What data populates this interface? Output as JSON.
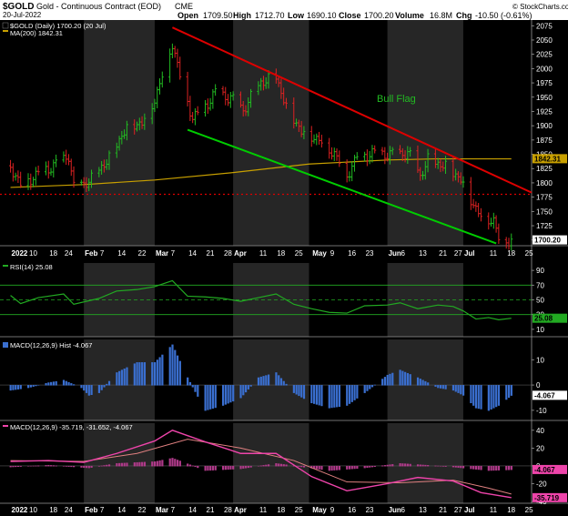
{
  "header": {
    "symbol": "$GOLD",
    "name": "Gold - Continuous Contract (EOD)",
    "exchange": "CME",
    "date": "20-Jul-2022",
    "open_label": "Open",
    "open": "1709.50",
    "high_label": "High",
    "high": "1712.70",
    "low_label": "Low",
    "low": "1690.10",
    "close_label": "Close",
    "close": "1700.20",
    "volume_label": "Volume",
    "volume": "16.8M",
    "chg_label": "Chg",
    "chg": "-10.50 (-0.61%)",
    "watermark": "© StockCharts.com"
  },
  "price_legend": {
    "main": "$GOLD (Daily) 1700.20 (20 Jul)",
    "ma": "MA(200) 1842.31",
    "main_color": "#000000",
    "ma_color": "#c8a000"
  },
  "annotation": {
    "text": "Bull Flag",
    "color": "#22bb22"
  },
  "rsi_legend": "RSI(14) 25.08",
  "macd_hist_legend": "MACD(12,26,9) Hist -4.067",
  "macd_legend": "MACD(12,26,9) -35.719, -31.652, -4.067",
  "colors": {
    "up": "#22bb22",
    "down": "#dd2222",
    "resistance": "#dd0000",
    "support": "#00cc00",
    "ma": "#c8a000",
    "rsi": "#22aa22",
    "hist": "#3a6fd0",
    "macd": "#ee44aa",
    "signal": "#e08080"
  },
  "chart_data": [
    {
      "type": "candlestick",
      "title": "$GOLD (Daily)",
      "x_tick_labels": [
        "2022",
        "10",
        "18",
        "24",
        "Feb",
        "7",
        "14",
        "22",
        "Mar",
        "7",
        "14",
        "21",
        "28",
        "Apr",
        "11",
        "18",
        "25",
        "May",
        "9",
        "16",
        "23",
        "Jun",
        "6",
        "13",
        "21",
        "27",
        "Jul",
        "11",
        "18",
        "25"
      ],
      "y_ticks": [
        1700,
        1725,
        1750,
        1775,
        1800,
        1825,
        1850,
        1875,
        1900,
        1925,
        1950,
        1975,
        2000,
        2025,
        2050,
        2075
      ],
      "ylim": [
        1690,
        2085
      ],
      "last_value_label": "1700.20",
      "ma200_value_label": "1842.31",
      "horizontal_level": 1780,
      "close_path": [
        {
          "d": "2022-01-03",
          "v": 1830
        },
        {
          "d": "2022-01-07",
          "v": 1797
        },
        {
          "d": "2022-01-14",
          "v": 1817
        },
        {
          "d": "2022-01-21",
          "v": 1833
        },
        {
          "d": "2022-01-26",
          "v": 1849
        },
        {
          "d": "2022-01-28",
          "v": 1791
        },
        {
          "d": "2022-02-04",
          "v": 1807
        },
        {
          "d": "2022-02-11",
          "v": 1845
        },
        {
          "d": "2022-02-18",
          "v": 1899
        },
        {
          "d": "2022-02-24",
          "v": 1906
        },
        {
          "d": "2022-03-01",
          "v": 1946
        },
        {
          "d": "2022-03-08",
          "v": 2045
        },
        {
          "d": "2022-03-11",
          "v": 1988
        },
        {
          "d": "2022-03-16",
          "v": 1914
        },
        {
          "d": "2022-03-21",
          "v": 1935
        },
        {
          "d": "2022-03-25",
          "v": 1959
        },
        {
          "d": "2022-03-31",
          "v": 1949
        },
        {
          "d": "2022-04-05",
          "v": 1928
        },
        {
          "d": "2022-04-12",
          "v": 1977
        },
        {
          "d": "2022-04-18",
          "v": 1986
        },
        {
          "d": "2022-04-22",
          "v": 1934
        },
        {
          "d": "2022-04-28",
          "v": 1891
        },
        {
          "d": "2022-05-05",
          "v": 1876
        },
        {
          "d": "2022-05-11",
          "v": 1852
        },
        {
          "d": "2022-05-16",
          "v": 1814
        },
        {
          "d": "2022-05-20",
          "v": 1846
        },
        {
          "d": "2022-05-27",
          "v": 1853
        },
        {
          "d": "2022-06-03",
          "v": 1850
        },
        {
          "d": "2022-06-09",
          "v": 1853
        },
        {
          "d": "2022-06-14",
          "v": 1813
        },
        {
          "d": "2022-06-17",
          "v": 1840
        },
        {
          "d": "2022-06-24",
          "v": 1830
        },
        {
          "d": "2022-06-30",
          "v": 1807
        },
        {
          "d": "2022-07-05",
          "v": 1763
        },
        {
          "d": "2022-07-08",
          "v": 1742
        },
        {
          "d": "2022-07-13",
          "v": 1735
        },
        {
          "d": "2022-07-15",
          "v": 1703
        },
        {
          "d": "2022-07-20",
          "v": 1700
        }
      ],
      "ma200_path": [
        {
          "d": "2022-01-03",
          "v": 1792
        },
        {
          "d": "2022-02-01",
          "v": 1797
        },
        {
          "d": "2022-03-01",
          "v": 1805
        },
        {
          "d": "2022-04-01",
          "v": 1818
        },
        {
          "d": "2022-05-01",
          "v": 1833
        },
        {
          "d": "2022-06-01",
          "v": 1840
        },
        {
          "d": "2022-06-20",
          "v": 1842
        },
        {
          "d": "2022-07-20",
          "v": 1842
        }
      ],
      "resistance_line": [
        {
          "d": "2022-03-08",
          "v": 2072
        },
        {
          "d": "2022-07-28",
          "v": 1783
        }
      ],
      "support_line": [
        {
          "d": "2022-03-14",
          "v": 1893
        },
        {
          "d": "2022-07-14",
          "v": 1694
        }
      ]
    },
    {
      "type": "line",
      "title": "RSI(14)",
      "y_ticks": [
        10,
        30,
        50,
        70,
        90
      ],
      "ylim": [
        0,
        100
      ],
      "reference_levels": [
        30,
        50,
        70
      ],
      "last_value_label": "25.08",
      "values": [
        {
          "d": "2022-01-03",
          "v": 56
        },
        {
          "d": "2022-01-07",
          "v": 45
        },
        {
          "d": "2022-01-14",
          "v": 53
        },
        {
          "d": "2022-01-24",
          "v": 58
        },
        {
          "d": "2022-01-28",
          "v": 44
        },
        {
          "d": "2022-02-07",
          "v": 52
        },
        {
          "d": "2022-02-14",
          "v": 62
        },
        {
          "d": "2022-02-22",
          "v": 64
        },
        {
          "d": "2022-03-01",
          "v": 68
        },
        {
          "d": "2022-03-08",
          "v": 76
        },
        {
          "d": "2022-03-14",
          "v": 55
        },
        {
          "d": "2022-03-21",
          "v": 54
        },
        {
          "d": "2022-03-28",
          "v": 52
        },
        {
          "d": "2022-04-04",
          "v": 48
        },
        {
          "d": "2022-04-11",
          "v": 53
        },
        {
          "d": "2022-04-18",
          "v": 58
        },
        {
          "d": "2022-04-25",
          "v": 44
        },
        {
          "d": "2022-05-02",
          "v": 38
        },
        {
          "d": "2022-05-09",
          "v": 33
        },
        {
          "d": "2022-05-16",
          "v": 32
        },
        {
          "d": "2022-05-23",
          "v": 42
        },
        {
          "d": "2022-06-01",
          "v": 43
        },
        {
          "d": "2022-06-06",
          "v": 46
        },
        {
          "d": "2022-06-13",
          "v": 38
        },
        {
          "d": "2022-06-21",
          "v": 43
        },
        {
          "d": "2022-06-27",
          "v": 41
        },
        {
          "d": "2022-07-01",
          "v": 35
        },
        {
          "d": "2022-07-06",
          "v": 24
        },
        {
          "d": "2022-07-11",
          "v": 26
        },
        {
          "d": "2022-07-15",
          "v": 23
        },
        {
          "d": "2022-07-20",
          "v": 25.08
        }
      ]
    },
    {
      "type": "bar",
      "title": "MACD(12,26,9) Hist",
      "y_ticks": [
        -10,
        0,
        10
      ],
      "ylim": [
        -14,
        18
      ],
      "last_value_label": "-4.067",
      "values": [
        {
          "d": "2022-01-03",
          "v": -2
        },
        {
          "d": "2022-01-10",
          "v": -1
        },
        {
          "d": "2022-01-18",
          "v": 1
        },
        {
          "d": "2022-01-24",
          "v": 2
        },
        {
          "d": "2022-01-31",
          "v": -1
        },
        {
          "d": "2022-02-03",
          "v": -4
        },
        {
          "d": "2022-02-07",
          "v": -3
        },
        {
          "d": "2022-02-14",
          "v": 5
        },
        {
          "d": "2022-02-22",
          "v": 9
        },
        {
          "d": "2022-03-01",
          "v": 9
        },
        {
          "d": "2022-03-08",
          "v": 16
        },
        {
          "d": "2022-03-14",
          "v": 3
        },
        {
          "d": "2022-03-21",
          "v": -10
        },
        {
          "d": "2022-03-28",
          "v": -8
        },
        {
          "d": "2022-04-04",
          "v": -5
        },
        {
          "d": "2022-04-11",
          "v": 3
        },
        {
          "d": "2022-04-18",
          "v": 5
        },
        {
          "d": "2022-04-25",
          "v": -3
        },
        {
          "d": "2022-05-02",
          "v": -7
        },
        {
          "d": "2022-05-09",
          "v": -9
        },
        {
          "d": "2022-05-16",
          "v": -8
        },
        {
          "d": "2022-05-23",
          "v": -3
        },
        {
          "d": "2022-06-01",
          "v": 4
        },
        {
          "d": "2022-06-06",
          "v": 6
        },
        {
          "d": "2022-06-13",
          "v": 3
        },
        {
          "d": "2022-06-21",
          "v": -1
        },
        {
          "d": "2022-06-27",
          "v": -2
        },
        {
          "d": "2022-07-01",
          "v": -4
        },
        {
          "d": "2022-07-06",
          "v": -9
        },
        {
          "d": "2022-07-11",
          "v": -10
        },
        {
          "d": "2022-07-15",
          "v": -8
        },
        {
          "d": "2022-07-20",
          "v": -4.067
        }
      ]
    },
    {
      "type": "line",
      "title": "MACD(12,26,9)",
      "y_ticks": [
        -40,
        -20,
        0,
        20,
        40
      ],
      "ylim": [
        -42,
        48
      ],
      "last_value_labels": [
        "-4.067",
        "-35.719"
      ],
      "series": [
        {
          "name": "MACD(12,26,9)",
          "values": [
            {
              "d": "2022-01-03",
              "v": 5
            },
            {
              "d": "2022-01-18",
              "v": 6
            },
            {
              "d": "2022-02-01",
              "v": 4
            },
            {
              "d": "2022-02-14",
              "v": 14
            },
            {
              "d": "2022-03-01",
              "v": 28
            },
            {
              "d": "2022-03-08",
              "v": 40
            },
            {
              "d": "2022-03-21",
              "v": 27
            },
            {
              "d": "2022-04-04",
              "v": 14
            },
            {
              "d": "2022-04-18",
              "v": 14
            },
            {
              "d": "2022-05-02",
              "v": -12
            },
            {
              "d": "2022-05-16",
              "v": -28
            },
            {
              "d": "2022-06-01",
              "v": -20
            },
            {
              "d": "2022-06-13",
              "v": -13
            },
            {
              "d": "2022-06-27",
              "v": -17
            },
            {
              "d": "2022-07-08",
              "v": -30
            },
            {
              "d": "2022-07-20",
              "v": -35.719
            }
          ]
        },
        {
          "name": "Signal",
          "values": [
            {
              "d": "2022-01-03",
              "v": 6
            },
            {
              "d": "2022-02-01",
              "v": 5
            },
            {
              "d": "2022-02-22",
              "v": 14
            },
            {
              "d": "2022-03-14",
              "v": 30
            },
            {
              "d": "2022-04-04",
              "v": 20
            },
            {
              "d": "2022-04-25",
              "v": 6
            },
            {
              "d": "2022-05-16",
              "v": -18
            },
            {
              "d": "2022-06-06",
              "v": -19
            },
            {
              "d": "2022-06-27",
              "v": -16
            },
            {
              "d": "2022-07-11",
              "v": -25
            },
            {
              "d": "2022-07-20",
              "v": -31.652
            }
          ]
        }
      ],
      "histogram": [
        {
          "d": "2022-01-03",
          "v": -1
        },
        {
          "d": "2022-01-18",
          "v": 1
        },
        {
          "d": "2022-02-03",
          "v": -2
        },
        {
          "d": "2022-02-14",
          "v": 3
        },
        {
          "d": "2022-03-01",
          "v": 5
        },
        {
          "d": "2022-03-08",
          "v": 9
        },
        {
          "d": "2022-03-21",
          "v": -5
        },
        {
          "d": "2022-04-04",
          "v": -3
        },
        {
          "d": "2022-04-18",
          "v": 3
        },
        {
          "d": "2022-05-09",
          "v": -5
        },
        {
          "d": "2022-05-23",
          "v": -2
        },
        {
          "d": "2022-06-06",
          "v": 3
        },
        {
          "d": "2022-06-27",
          "v": -1
        },
        {
          "d": "2022-07-11",
          "v": -5
        },
        {
          "d": "2022-07-20",
          "v": -4.067
        }
      ]
    }
  ]
}
